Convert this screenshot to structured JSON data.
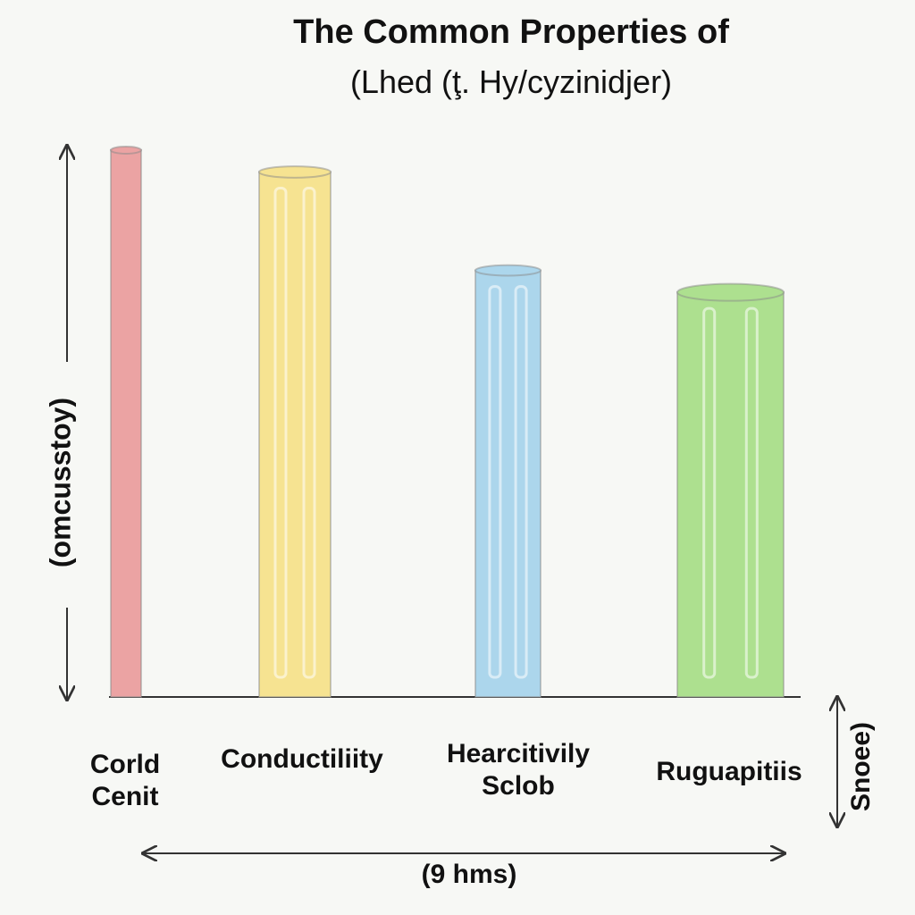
{
  "chart_data": {
    "type": "bar",
    "title": "The Common Properties of",
    "subtitle": "(Lhed (ţ. Hy/cyzinidjer)",
    "y_label": "(omcusstoy)",
    "x_label": "(9 hms)",
    "side_label": "Snoee)",
    "categories": [
      "Corld\nCenit",
      "Conductiliity",
      "Hearcitivily\nSclob",
      "Ruguapitiis"
    ],
    "values": [
      100,
      96,
      78,
      74
    ],
    "colors": [
      "#eba3a3",
      "#f6e391",
      "#acd6ec",
      "#ade08f"
    ],
    "ylim": [
      0,
      100
    ]
  }
}
